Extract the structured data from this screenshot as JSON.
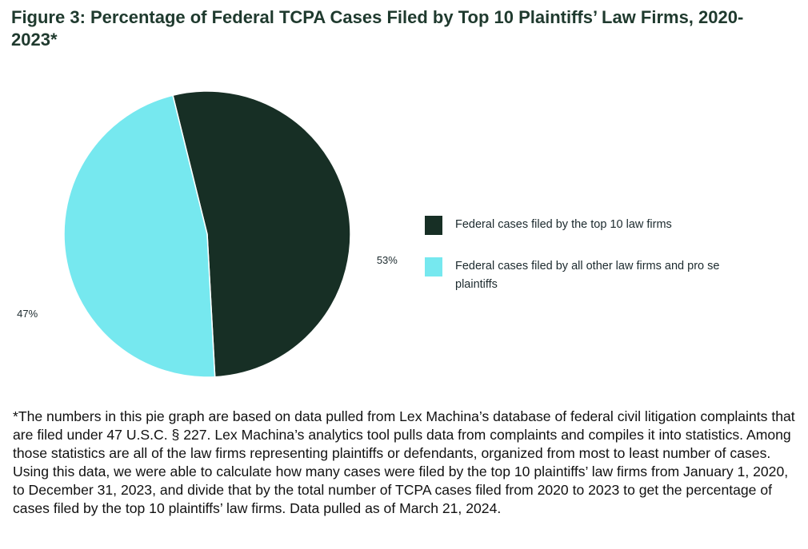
{
  "chart_data": {
    "type": "pie",
    "title": "Figure 3: Percentage of Federal TCPA Cases Filed by Top 10 Plaintiffs’ Law Firms, 2020-2023*",
    "series": [
      {
        "name": "Federal cases filed by the top 10 law firms",
        "color": "#172f25",
        "values": [
          53
        ],
        "value_labels": [
          "53%"
        ]
      },
      {
        "name": "Federal cases filed by all other law firms and pro se plaintiffs",
        "color": "#76e8ef",
        "values": [
          47
        ],
        "value_labels": [
          "47%"
        ]
      }
    ],
    "note": "*The numbers in this pie graph are based on data pulled from Lex Machina’s database of federal civil litigation complaints that are filed under 47 U.S.C. § 227. Lex Machina’s analytics tool pulls data from complaints and compiles it into statistics. Among those statistics are all of the law firms representing plaintiffs or defendants, organized from most to least number of cases. Using this data, we were able to calculate how many cases were filed by the top 10 plaintiffs’ law firms from January 1, 2020, to December 31, 2023, and divide that by the total number of TCPA cases filed from 2020 to 2023 to get the percentage of cases filed by the top 10 plaintiffs’ law firms. Data pulled as of March 21, 2024."
  }
}
